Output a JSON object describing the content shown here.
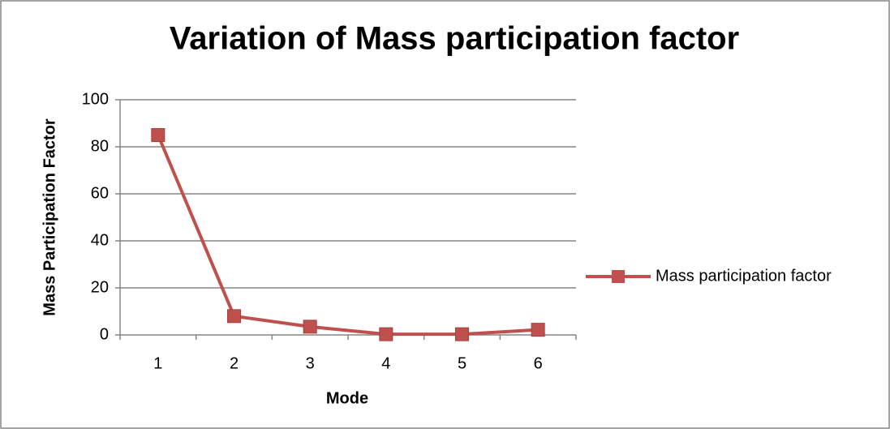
{
  "chart_data": {
    "type": "line",
    "title": "Variation of Mass participation factor",
    "x_label": "Mode",
    "y_label": "Mass Participation Factor",
    "categories": [
      "1",
      "2",
      "3",
      "4",
      "5",
      "6"
    ],
    "series": [
      {
        "name": "Mass participation factor",
        "color": "#c0504d",
        "values": [
          85,
          8,
          3.5,
          0.3,
          0.3,
          2.2
        ]
      }
    ],
    "ylim": [
      0,
      100
    ],
    "yticks": [
      0,
      20,
      40,
      60,
      80,
      100
    ],
    "grid": true,
    "legend": "right"
  }
}
